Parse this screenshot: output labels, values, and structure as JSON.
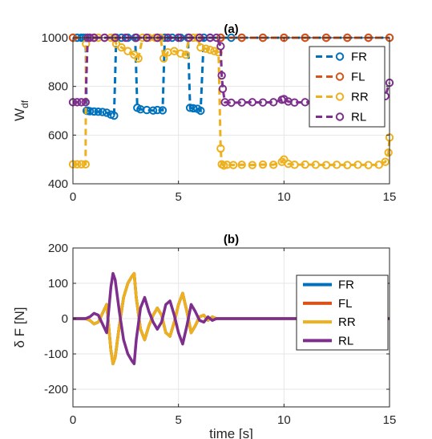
{
  "figure": {
    "colors": {
      "FR": "#0072BD",
      "FL": "#D95319",
      "RR": "#EDB120",
      "RL": "#7E2F8E"
    }
  },
  "chart_data": [
    {
      "type": "line",
      "title": "(a)",
      "xlabel": "",
      "ylabel": "W",
      "ylabel_sub": "df",
      "xlim": [
        0,
        15
      ],
      "ylim": [
        400,
        1000
      ],
      "xticks": [
        0,
        5,
        10,
        15
      ],
      "yticks": [
        400,
        600,
        800,
        1000
      ],
      "grid": true,
      "legend_position": "top-right",
      "legend_style": "dashed-circle",
      "series": [
        {
          "name": "FR",
          "color": "#0072BD",
          "x": [
            0.0,
            0.2,
            0.4,
            0.5,
            0.6,
            0.65,
            0.7,
            0.8,
            1.0,
            1.2,
            1.4,
            1.6,
            1.8,
            1.95,
            2.05,
            2.3,
            2.6,
            2.95,
            3.05,
            3.2,
            3.5,
            3.8,
            4.0,
            4.25,
            4.35,
            4.7,
            5.1,
            5.45,
            5.55,
            5.7,
            5.9,
            6.05,
            6.2,
            6.5,
            7.0,
            7.5,
            8,
            9,
            10,
            11,
            12,
            13,
            14,
            15
          ],
          "y": [
            1000,
            1000,
            1000,
            1000,
            1000,
            700,
            700,
            698,
            697,
            696,
            695,
            692,
            684,
            680,
            1000,
            1000,
            1000,
            1000,
            712,
            706,
            703,
            701,
            703,
            702,
            1000,
            1000,
            1000,
            1000,
            712,
            710,
            708,
            700,
            1000,
            1000,
            1000,
            1000,
            1000,
            1000,
            1000,
            1000,
            1000,
            1000,
            1000,
            1000
          ]
        },
        {
          "name": "FL",
          "color": "#D95319",
          "x": [
            0,
            1,
            2,
            3,
            4,
            5,
            6,
            7,
            8,
            9,
            10,
            11,
            12,
            13,
            14,
            15
          ],
          "y": [
            1000,
            1000,
            1000,
            1000,
            1000,
            1000,
            1000,
            1000,
            1000,
            1000,
            1000,
            1000,
            1000,
            1000,
            1000,
            1000
          ]
        },
        {
          "name": "RR",
          "color": "#EDB120",
          "x": [
            0.0,
            0.2,
            0.4,
            0.6,
            0.62,
            0.7,
            0.8,
            1.0,
            1.2,
            1.5,
            1.8,
            1.95,
            2.05,
            2.3,
            2.6,
            2.9,
            3.1,
            3.3,
            3.6,
            3.9,
            4.15,
            4.3,
            4.5,
            4.8,
            5.1,
            5.35,
            5.5,
            5.7,
            5.9,
            6.05,
            6.3,
            6.5,
            6.7,
            6.9,
            7.0,
            7.05,
            7.15,
            7.3,
            7.6,
            8.0,
            8.5,
            9.0,
            9.5,
            9.9,
            10.0,
            10.2,
            10.5,
            11,
            11.5,
            12,
            12.5,
            13,
            13.5,
            14,
            14.5,
            14.8,
            14.95,
            15.0
          ],
          "y": [
            480,
            480,
            480,
            480,
            975,
            1000,
            1000,
            1000,
            1000,
            1000,
            1000,
            1000,
            975,
            960,
            945,
            930,
            915,
            1000,
            1000,
            1000,
            1000,
            915,
            940,
            945,
            935,
            930,
            1000,
            1000,
            1000,
            960,
            955,
            950,
            945,
            940,
            545,
            480,
            475,
            478,
            477,
            478,
            477,
            479,
            478,
            490,
            500,
            482,
            478,
            479,
            478,
            477,
            478,
            477,
            478,
            477,
            478,
            490,
            528,
            590
          ]
        },
        {
          "name": "RL",
          "color": "#7E2F8E",
          "x": [
            0.0,
            0.2,
            0.4,
            0.6,
            0.7,
            0.8,
            1.0,
            1.5,
            2.0,
            2.5,
            3.0,
            3.5,
            4.0,
            4.5,
            5.0,
            5.5,
            6.0,
            6.5,
            6.8,
            7.0,
            7.05,
            7.1,
            7.2,
            7.5,
            8,
            8.5,
            9,
            9.5,
            9.9,
            10.0,
            10.2,
            10.5,
            11,
            11.5,
            12,
            12.5,
            13,
            13.5,
            14,
            14.5,
            14.8,
            15.0
          ],
          "y": [
            735,
            735,
            735,
            735,
            1000,
            1000,
            1000,
            1000,
            1000,
            1000,
            1000,
            1000,
            1000,
            1000,
            1000,
            1000,
            1000,
            1000,
            1000,
            965,
            845,
            790,
            735,
            733,
            734,
            735,
            734,
            735,
            745,
            748,
            738,
            734,
            735,
            734,
            735,
            734,
            735,
            734,
            735,
            740,
            760,
            815
          ]
        }
      ]
    },
    {
      "type": "line",
      "title": "(b)",
      "xlabel": "time [s]",
      "ylabel": "δ F [N]",
      "xlim": [
        0,
        15
      ],
      "ylim": [
        -250,
        200
      ],
      "xticks": [
        0,
        5,
        10,
        15
      ],
      "yticks": [
        -200,
        -100,
        0,
        100,
        200
      ],
      "grid": true,
      "legend_position": "right",
      "legend_style": "solid-line",
      "series": [
        {
          "name": "FR",
          "color": "#0072BD",
          "x": [
            0,
            0.6,
            0.8,
            1.0,
            1.2,
            1.4,
            1.6,
            1.8,
            1.9,
            2.0,
            2.2,
            2.4,
            2.6,
            2.8,
            2.9,
            3.0,
            3.2,
            3.4,
            3.6,
            3.8,
            4.0,
            4.2,
            4.4,
            4.6,
            4.8,
            5.0,
            5.2,
            5.4,
            5.6,
            5.8,
            6.0,
            6.2,
            6.4,
            6.6,
            6.8,
            7.0,
            7.5,
            8,
            9,
            10,
            11,
            12,
            13,
            14,
            15
          ],
          "y": [
            0,
            0,
            -5,
            -15,
            -10,
            15,
            40,
            -90,
            -128,
            -110,
            -20,
            60,
            100,
            120,
            128,
            60,
            -30,
            -60,
            -20,
            10,
            30,
            10,
            -40,
            -50,
            -10,
            40,
            72,
            20,
            -40,
            -20,
            5,
            10,
            -5,
            5,
            0,
            0,
            0,
            0,
            0,
            0,
            0,
            0,
            0,
            0,
            0
          ]
        },
        {
          "name": "FL",
          "color": "#D95319",
          "x": [
            0,
            0.6,
            0.8,
            1.0,
            1.2,
            1.4,
            1.6,
            1.8,
            1.9,
            2.0,
            2.2,
            2.4,
            2.6,
            2.8,
            2.9,
            3.0,
            3.2,
            3.4,
            3.6,
            3.8,
            4.0,
            4.2,
            4.4,
            4.6,
            4.8,
            5.0,
            5.2,
            5.4,
            5.6,
            5.8,
            6.0,
            6.2,
            6.4,
            6.6,
            6.8,
            7.0,
            7.5,
            8,
            9,
            10,
            11,
            12,
            13,
            14,
            15
          ],
          "y": [
            0,
            0,
            -5,
            -15,
            -10,
            15,
            40,
            -90,
            -128,
            -110,
            -20,
            60,
            100,
            120,
            128,
            60,
            -30,
            -60,
            -20,
            10,
            30,
            10,
            -40,
            -50,
            -10,
            40,
            72,
            20,
            -40,
            -20,
            5,
            10,
            -5,
            5,
            0,
            0,
            0,
            0,
            0,
            0,
            0,
            0,
            0,
            0,
            0
          ]
        },
        {
          "name": "RR",
          "color": "#EDB120",
          "x": [
            0,
            0.6,
            0.8,
            1.0,
            1.2,
            1.4,
            1.6,
            1.8,
            1.9,
            2.0,
            2.2,
            2.4,
            2.6,
            2.8,
            2.9,
            3.0,
            3.2,
            3.4,
            3.6,
            3.8,
            4.0,
            4.2,
            4.4,
            4.6,
            4.8,
            5.0,
            5.2,
            5.4,
            5.6,
            5.8,
            6.0,
            6.2,
            6.4,
            6.6,
            6.8,
            7.0,
            7.5,
            8,
            9,
            10,
            11,
            12,
            13,
            14,
            15
          ],
          "y": [
            0,
            0,
            -5,
            -15,
            -10,
            15,
            40,
            -90,
            -128,
            -110,
            -20,
            60,
            100,
            120,
            128,
            60,
            -30,
            -60,
            -20,
            10,
            30,
            10,
            -40,
            -50,
            -10,
            40,
            72,
            20,
            -40,
            -20,
            5,
            10,
            -5,
            5,
            0,
            0,
            0,
            0,
            0,
            0,
            0,
            0,
            0,
            0,
            0
          ]
        },
        {
          "name": "RL",
          "color": "#7E2F8E",
          "x": [
            0,
            0.6,
            0.8,
            1.0,
            1.2,
            1.4,
            1.6,
            1.8,
            1.9,
            2.0,
            2.2,
            2.4,
            2.6,
            2.8,
            2.9,
            3.0,
            3.2,
            3.4,
            3.6,
            3.8,
            4.0,
            4.2,
            4.4,
            4.6,
            4.8,
            5.0,
            5.2,
            5.4,
            5.6,
            5.8,
            6.0,
            6.2,
            6.4,
            6.6,
            6.8,
            7.0,
            7.5,
            8,
            9,
            10,
            11,
            12,
            13,
            14,
            15
          ],
          "y": [
            0,
            0,
            5,
            15,
            10,
            -15,
            -40,
            90,
            128,
            110,
            20,
            -60,
            -100,
            -120,
            -128,
            -60,
            30,
            60,
            20,
            -10,
            -30,
            -10,
            40,
            50,
            10,
            -40,
            -72,
            -20,
            40,
            20,
            -5,
            -10,
            5,
            -5,
            0,
            0,
            0,
            0,
            0,
            0,
            0,
            0,
            0,
            0,
            0
          ]
        }
      ]
    }
  ]
}
